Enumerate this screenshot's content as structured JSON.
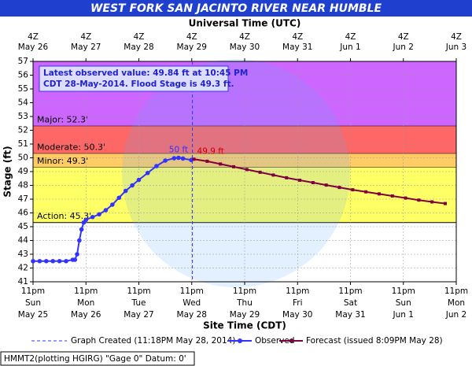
{
  "chart_data": {
    "type": "line",
    "title": "WEST FORK SAN JACINTO RIVER NEAR HUMBLE",
    "top_axis_title": "Universal Time (UTC)",
    "x_label": "Site Time (CDT)",
    "y_label": "Stage (ft)",
    "ylim": [
      41,
      57
    ],
    "yticks": [
      41,
      42,
      43,
      44,
      45,
      46,
      47,
      48,
      49,
      50,
      51,
      52,
      53,
      54,
      55,
      56,
      57
    ],
    "xlim": [
      "2014-05-25T23:00",
      "2014-06-02T23:00"
    ],
    "xticks": [
      {
        "value": "2014-05-25T23:00",
        "label": [
          "11pm",
          "Sun",
          "May 25"
        ]
      },
      {
        "value": "2014-05-26T23:00",
        "label": [
          "11pm",
          "Mon",
          "May 26"
        ]
      },
      {
        "value": "2014-05-27T23:00",
        "label": [
          "11pm",
          "Tue",
          "May 27"
        ]
      },
      {
        "value": "2014-05-28T23:00",
        "label": [
          "11pm",
          "Wed",
          "May 28"
        ]
      },
      {
        "value": "2014-05-29T23:00",
        "label": [
          "11pm",
          "Thu",
          "May 29"
        ]
      },
      {
        "value": "2014-05-30T23:00",
        "label": [
          "11pm",
          "Fri",
          "May 30"
        ]
      },
      {
        "value": "2014-05-31T23:00",
        "label": [
          "11pm",
          "Sat",
          "May 31"
        ]
      },
      {
        "value": "2014-06-01T23:00",
        "label": [
          "11pm",
          "Sun",
          "Jun 1"
        ]
      },
      {
        "value": "2014-06-02T23:00",
        "label": [
          "11pm",
          "Mon",
          "Jun 2"
        ]
      }
    ],
    "x2ticks": [
      {
        "value": "2014-05-25T23:00",
        "label": [
          "4Z",
          "May 26"
        ]
      },
      {
        "value": "2014-05-26T23:00",
        "label": [
          "4Z",
          "May 27"
        ]
      },
      {
        "value": "2014-05-27T23:00",
        "label": [
          "4Z",
          "May 28"
        ]
      },
      {
        "value": "2014-05-28T23:00",
        "label": [
          "4Z",
          "May 29"
        ]
      },
      {
        "value": "2014-05-29T23:00",
        "label": [
          "4Z",
          "May 30"
        ]
      },
      {
        "value": "2014-05-30T23:00",
        "label": [
          "4Z",
          "May 31"
        ]
      },
      {
        "value": "2014-05-31T23:00",
        "label": [
          "4Z",
          "Jun 1"
        ]
      },
      {
        "value": "2014-06-01T23:00",
        "label": [
          "4Z",
          "Jun 2"
        ]
      },
      {
        "value": "2014-06-02T23:00",
        "label": [
          "4Z",
          "Jun 3"
        ]
      }
    ],
    "grid": true,
    "flood_stages": [
      {
        "value": 52.3,
        "label": "Major: 52.3'",
        "color": "#cc66ff"
      },
      {
        "value": 50.3,
        "label": "Moderate: 50.3'",
        "color": "#ff6666"
      },
      {
        "value": 49.3,
        "label": "Minor: 49.3'",
        "color": "#ffcc66"
      },
      {
        "value": 45.3,
        "label": "Action: 45.3'",
        "color": "#ffff66"
      }
    ],
    "created_x": "2014-05-28T23:18",
    "series": [
      {
        "name": "Observed",
        "color": "#3333ff",
        "x": [
          "2014-05-25T23:00",
          "2014-05-26T02:00",
          "2014-05-26T05:00",
          "2014-05-26T08:00",
          "2014-05-26T11:00",
          "2014-05-26T14:00",
          "2014-05-26T17:00",
          "2014-05-26T18:00",
          "2014-05-26T19:00",
          "2014-05-26T20:00",
          "2014-05-26T21:00",
          "2014-05-26T22:00",
          "2014-05-26T23:00",
          "2014-05-27T02:00",
          "2014-05-27T05:00",
          "2014-05-27T08:00",
          "2014-05-27T11:00",
          "2014-05-27T14:00",
          "2014-05-27T17:00",
          "2014-05-27T20:00",
          "2014-05-27T23:00",
          "2014-05-28T03:00",
          "2014-05-28T07:00",
          "2014-05-28T11:00",
          "2014-05-28T15:00",
          "2014-05-28T17:00",
          "2014-05-28T19:00",
          "2014-05-28T22:45"
        ],
        "values": [
          42.5,
          42.5,
          42.5,
          42.5,
          42.5,
          42.5,
          42.6,
          42.6,
          43.0,
          44.0,
          44.8,
          45.3,
          45.5,
          45.7,
          45.9,
          46.2,
          46.6,
          47.1,
          47.6,
          48.0,
          48.4,
          48.9,
          49.4,
          49.8,
          49.97,
          50.0,
          49.95,
          49.84
        ]
      },
      {
        "name": "Forecast (issued 8:09PM May 28)",
        "color": "#800040",
        "x": [
          "2014-05-29T00:00",
          "2014-05-29T06:00",
          "2014-05-29T12:00",
          "2014-05-29T18:00",
          "2014-05-30T00:00",
          "2014-05-30T06:00",
          "2014-05-30T12:00",
          "2014-05-30T18:00",
          "2014-05-31T00:00",
          "2014-05-31T06:00",
          "2014-05-31T12:00",
          "2014-05-31T18:00",
          "2014-06-01T00:00",
          "2014-06-01T06:00",
          "2014-06-01T12:00",
          "2014-06-01T18:00",
          "2014-06-02T00:00",
          "2014-06-02T06:00",
          "2014-06-02T12:00",
          "2014-06-02T18:00"
        ],
        "values": [
          49.9,
          49.75,
          49.55,
          49.35,
          49.15,
          48.95,
          48.75,
          48.55,
          48.37,
          48.2,
          48.02,
          47.85,
          47.68,
          47.53,
          47.38,
          47.23,
          47.08,
          46.93,
          46.8,
          46.68
        ]
      }
    ],
    "peak_labels": [
      {
        "text": "50 ft",
        "color": "#3333ff"
      },
      {
        "text": "49.9 ft",
        "color": "#cc0000"
      }
    ],
    "info_box": [
      "Latest observed value: 49.84 ft at 10:45 PM",
      "CDT 28-May-2014. Flood Stage is 49.3 ft."
    ],
    "legend": {
      "created": "Graph Created (11:18PM May 28, 2014)"
    },
    "footer": "HMMT2(plotting HGIRG) \"Gage 0\" Datum: 0'"
  }
}
